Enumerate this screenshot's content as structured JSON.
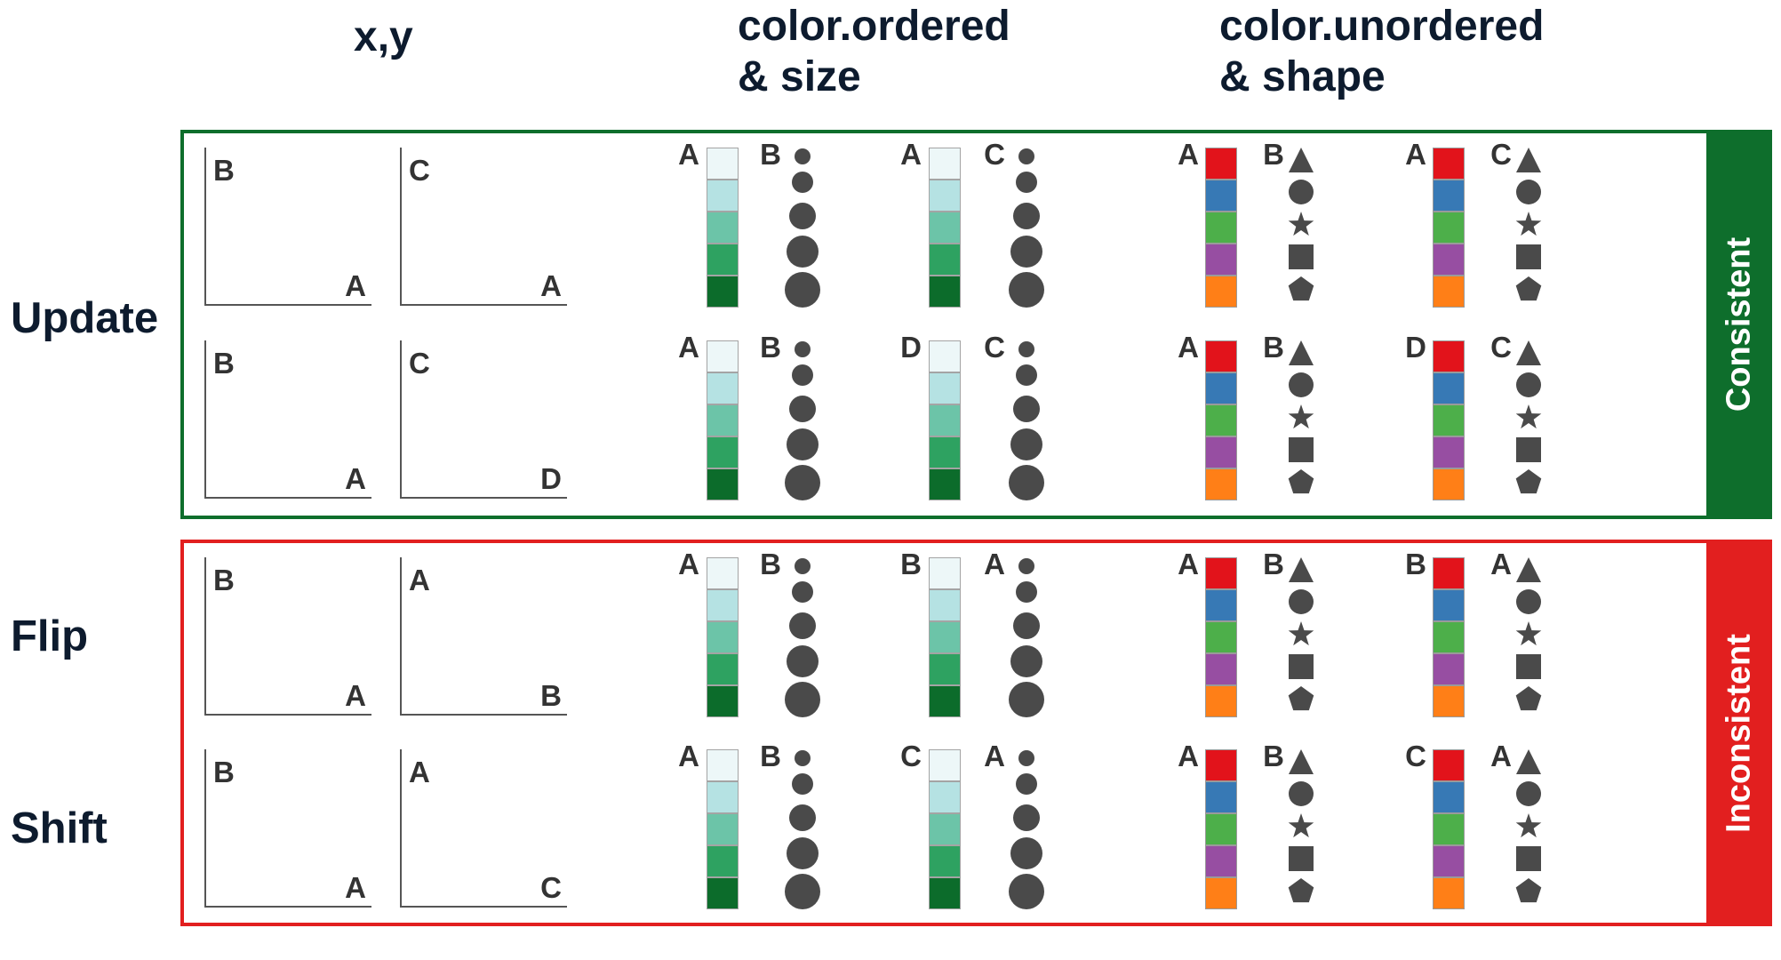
{
  "headers": {
    "xy": "x,y",
    "ordered": [
      "color.ordered",
      "& size"
    ],
    "unordered": [
      "color.unordered",
      "& shape"
    ]
  },
  "row_labels": [
    "Update",
    "Flip",
    "Shift"
  ],
  "bands": {
    "consistent": {
      "label": "Consistent",
      "color": "#0e6e2c"
    },
    "inconsistent": {
      "label": "Inconsistent",
      "color": "#e21f1f"
    }
  },
  "ramp_colors": [
    "#edf7f8",
    "#b5e2e3",
    "#6cc4a8",
    "#2ea261",
    "#0c6c2b"
  ],
  "palette_colors": [
    "#e2131b",
    "#3779b5",
    "#4daf4a",
    "#974ea2",
    "#ff7f17"
  ],
  "mark_color": "#4a4a4a",
  "shape_names": [
    "triangle-icon",
    "circle-icon",
    "star-icon",
    "square-icon",
    "pentagon-icon"
  ],
  "rows": [
    {
      "xy": [
        [
          "B",
          "A"
        ],
        [
          "C",
          "A"
        ]
      ],
      "ordered": [
        [
          "A",
          "B"
        ],
        [
          "A",
          "C"
        ]
      ],
      "unordered": [
        [
          "A",
          "B"
        ],
        [
          "A",
          "C"
        ]
      ]
    },
    {
      "xy": [
        [
          "B",
          "A"
        ],
        [
          "C",
          "D"
        ]
      ],
      "ordered": [
        [
          "A",
          "B"
        ],
        [
          "D",
          "C"
        ]
      ],
      "unordered": [
        [
          "A",
          "B"
        ],
        [
          "D",
          "C"
        ]
      ]
    },
    {
      "xy": [
        [
          "B",
          "A"
        ],
        [
          "A",
          "B"
        ]
      ],
      "ordered": [
        [
          "A",
          "B"
        ],
        [
          "B",
          "A"
        ]
      ],
      "unordered": [
        [
          "A",
          "B"
        ],
        [
          "B",
          "A"
        ]
      ]
    },
    {
      "xy": [
        [
          "B",
          "A"
        ],
        [
          "A",
          "C"
        ]
      ],
      "ordered": [
        [
          "A",
          "B"
        ],
        [
          "C",
          "A"
        ]
      ],
      "unordered": [
        [
          "A",
          "B"
        ],
        [
          "C",
          "A"
        ]
      ]
    }
  ]
}
